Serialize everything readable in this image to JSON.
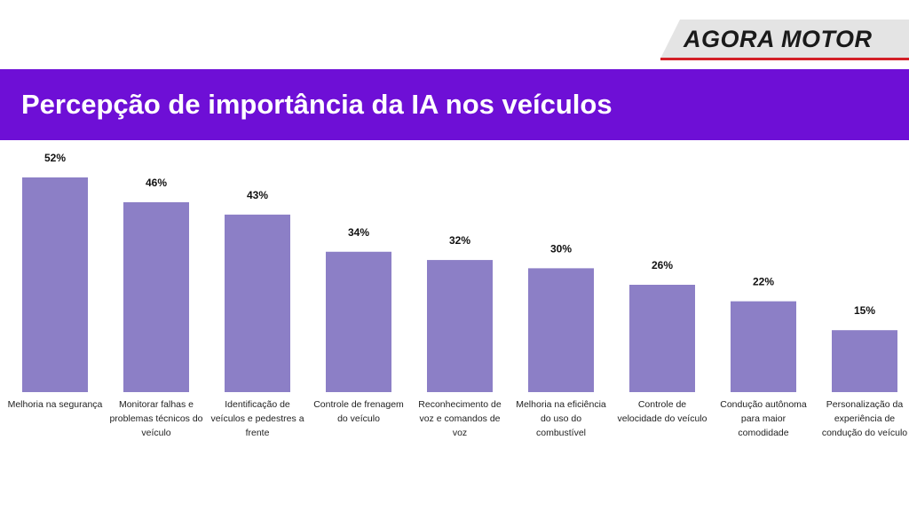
{
  "brand": {
    "name": "AGORA MOTOR",
    "accent_color": "#d32027"
  },
  "header": {
    "title": "Percepção de importância da IA nos veículos",
    "background": "#6e0fd6"
  },
  "chart_data": {
    "type": "bar",
    "title": "Percepção de importância da IA nos veículos",
    "xlabel": "",
    "ylabel": "",
    "ylim": [
      0,
      60
    ],
    "value_suffix": "%",
    "bar_color": "#8c7fc6",
    "categories": [
      [
        "Melhoria na segurança"
      ],
      [
        "Monitorar falhas e",
        "problemas técnicos do",
        "veículo"
      ],
      [
        "Identificação de",
        "veículos e pedestres a",
        "frente"
      ],
      [
        "Controle de frenagem",
        "do veículo"
      ],
      [
        "Reconhecimento de",
        "voz e comandos de",
        "voz"
      ],
      [
        "Melhoria na eficiência",
        "do uso do",
        "combustível"
      ],
      [
        "Controle de",
        "velocidade do veículo"
      ],
      [
        "Condução autônoma",
        "para maior",
        "comodidade"
      ],
      [
        "Personalização da",
        "experiência de",
        "condução do veículo"
      ]
    ],
    "values": [
      52,
      46,
      43,
      34,
      32,
      30,
      26,
      22,
      15
    ],
    "labels": [
      "52%",
      "46%",
      "43%",
      "34%",
      "32%",
      "30%",
      "26%",
      "22%",
      "15%"
    ]
  }
}
